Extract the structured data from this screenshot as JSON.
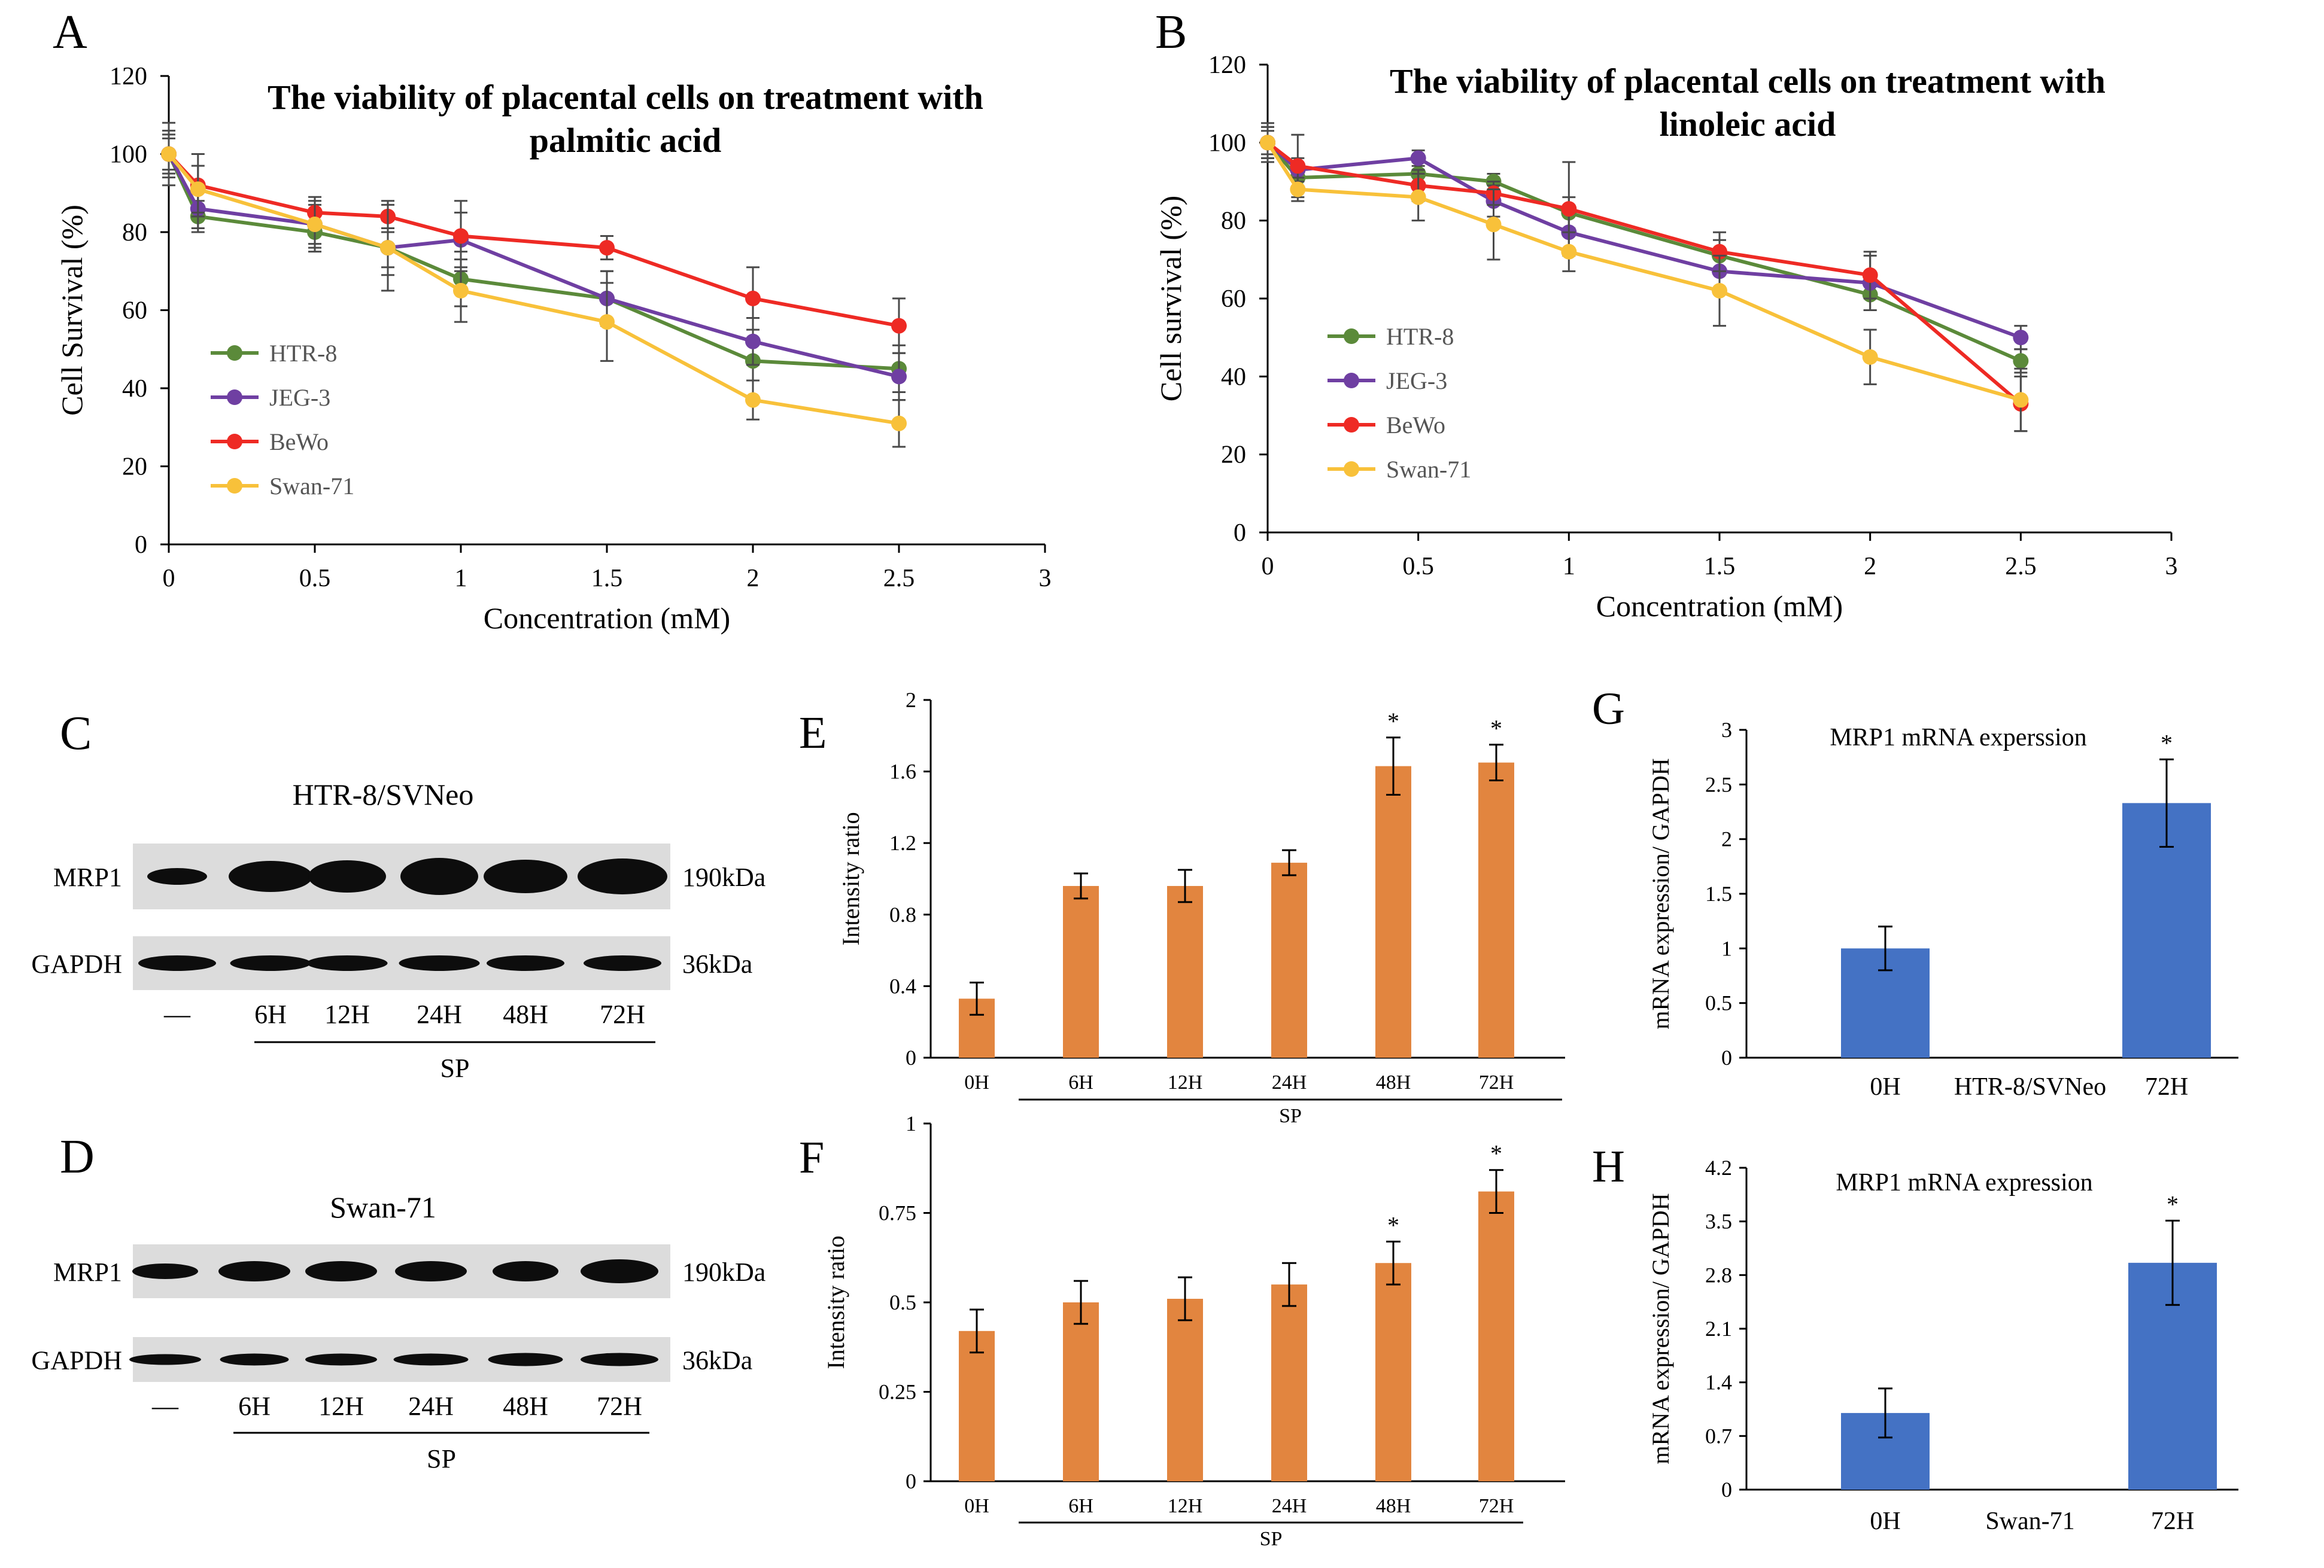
{
  "panels": {
    "A": {
      "letter": "A"
    },
    "B": {
      "letter": "B"
    },
    "C": {
      "letter": "C"
    },
    "D": {
      "letter": "D"
    },
    "E": {
      "letter": "E"
    },
    "F": {
      "letter": "F"
    },
    "G": {
      "letter": "G"
    },
    "H": {
      "letter": "H"
    }
  },
  "colors": {
    "HTR-8": "#5b8a3a",
    "JEG-3": "#6f3fa2",
    "BeWo": "#ee2a24",
    "Swan-71": "#f8c13a",
    "orange_bar": "#e2853f",
    "blue_bar": "#4472c4",
    "axis": "#000000",
    "error": "#404040"
  },
  "blots": {
    "C": {
      "title": "HTR-8/SVNeo",
      "rows": [
        {
          "label": "MRP1",
          "kda": "190kDa"
        },
        {
          "label": "GAPDH",
          "kda": "36kDa"
        }
      ],
      "lanes": [
        "—",
        "6H",
        "12H",
        "24H",
        "48H",
        "72H"
      ],
      "group_label": "SP"
    },
    "D": {
      "title": "Swan-71",
      "rows": [
        {
          "label": "MRP1",
          "kda": "190kDa"
        },
        {
          "label": "GAPDH",
          "kda": "36kDa"
        }
      ],
      "lanes": [
        "—",
        "6H",
        "12H",
        "24H",
        "48H",
        "72H"
      ],
      "group_label": "SP"
    }
  },
  "chart_data": [
    {
      "panel": "A",
      "type": "line",
      "title": "The viability of placental cells on treatment with palmitic acid",
      "title_lines": [
        "The viability of placental cells on treatment with",
        "palmitic acid"
      ],
      "xlabel": "Concentration (mM)",
      "ylabel": "Cell Survival (%)",
      "xlim": [
        0,
        3
      ],
      "ylim": [
        0,
        120
      ],
      "xticks": [
        0,
        0.5,
        1,
        1.5,
        2,
        2.5,
        3
      ],
      "xtick_labels": [
        "0",
        "0.5",
        "1",
        "1.5",
        "2",
        "2.5",
        "3"
      ],
      "yticks": [
        0,
        20,
        40,
        60,
        80,
        100,
        120
      ],
      "ytick_labels": [
        "0",
        "20",
        "40",
        "60",
        "80",
        "100",
        "120"
      ],
      "legend": "left",
      "series": [
        {
          "name": "HTR-8",
          "x": [
            0,
            0.1,
            0.5,
            0.75,
            1,
            1.5,
            2,
            2.5
          ],
          "y": [
            100,
            84,
            80,
            76,
            68,
            63,
            47,
            45
          ],
          "err": [
            8,
            4,
            5,
            7,
            7,
            7,
            5,
            6
          ]
        },
        {
          "name": "JEG-3",
          "x": [
            0,
            0.1,
            0.5,
            0.75,
            1,
            1.5,
            2,
            2.5
          ],
          "y": [
            100,
            86,
            82,
            76,
            78,
            63,
            52,
            43
          ],
          "err": [
            6,
            5,
            5,
            5,
            7,
            7,
            6,
            6
          ]
        },
        {
          "name": "BeWo",
          "x": [
            0,
            0.1,
            0.5,
            0.75,
            1,
            1.5,
            2,
            2.5
          ],
          "y": [
            100,
            92,
            85,
            84,
            79,
            76,
            63,
            56
          ],
          "err": [
            4,
            8,
            4,
            4,
            9,
            3,
            8,
            7
          ]
        },
        {
          "name": "Swan-71",
          "x": [
            0,
            0.1,
            0.5,
            0.75,
            1,
            1.5,
            2,
            2.5
          ],
          "y": [
            100,
            91,
            82,
            76,
            65,
            57,
            37,
            31
          ],
          "err": [
            5,
            6,
            6,
            11,
            8,
            10,
            5,
            6
          ]
        }
      ]
    },
    {
      "panel": "B",
      "type": "line",
      "title": "The viability of placental cells on treatment with linoleic acid",
      "title_lines": [
        "The viability of placental cells on treatment with",
        "linoleic acid"
      ],
      "xlabel": "Concentration (mM)",
      "ylabel": "Cell survival (%)",
      "xlim": [
        0,
        3
      ],
      "ylim": [
        0,
        120
      ],
      "xticks": [
        0,
        0.5,
        1,
        1.5,
        2,
        2.5,
        3
      ],
      "xtick_labels": [
        "0",
        "0.5",
        "1",
        "1.5",
        "2",
        "2.5",
        "3"
      ],
      "yticks": [
        0,
        20,
        40,
        60,
        80,
        100,
        120
      ],
      "ytick_labels": [
        "0",
        "20",
        "40",
        "60",
        "80",
        "100",
        "120"
      ],
      "legend": "left",
      "series": [
        {
          "name": "HTR-8",
          "x": [
            0,
            0.1,
            0.5,
            0.75,
            1,
            1.5,
            2,
            2.5
          ],
          "y": [
            100,
            91,
            92,
            90,
            82,
            71,
            61,
            44
          ],
          "err": [
            4,
            3,
            3,
            2,
            4,
            4,
            4,
            3
          ]
        },
        {
          "name": "JEG-3",
          "x": [
            0,
            0.1,
            0.5,
            0.75,
            1,
            1.5,
            2,
            2.5
          ],
          "y": [
            100,
            93,
            96,
            85,
            77,
            67,
            64,
            50
          ],
          "err": [
            4,
            3,
            2,
            4,
            5,
            5,
            7,
            3
          ]
        },
        {
          "name": "BeWo",
          "x": [
            0,
            0.1,
            0.5,
            0.75,
            1,
            1.5,
            2,
            2.5
          ],
          "y": [
            100,
            94,
            89,
            87,
            83,
            72,
            66,
            33
          ],
          "err": [
            3,
            8,
            4,
            3,
            12,
            5,
            6,
            7
          ]
        },
        {
          "name": "Swan-71",
          "x": [
            0,
            0.1,
            0.5,
            0.75,
            1,
            1.5,
            2,
            2.5
          ],
          "y": [
            100,
            88,
            86,
            79,
            72,
            62,
            45,
            34
          ],
          "err": [
            5,
            3,
            6,
            9,
            5,
            9,
            7,
            8
          ]
        }
      ]
    },
    {
      "panel": "E",
      "type": "bar",
      "categories": [
        "0H",
        "6H",
        "12H",
        "24H",
        "48H",
        "72H"
      ],
      "values": [
        0.33,
        0.96,
        0.96,
        1.09,
        1.63,
        1.65
      ],
      "err": [
        0.09,
        0.07,
        0.09,
        0.07,
        0.16,
        0.1
      ],
      "significant": [
        "",
        "",
        "",
        "",
        "*",
        "*"
      ],
      "ylabel": "Intensity ratio",
      "ylim": [
        0,
        2
      ],
      "yticks": [
        0,
        0.4,
        0.8,
        1.2,
        1.6,
        2
      ],
      "ytick_labels": [
        "0",
        "0.4",
        "0.8",
        "1.2",
        "1.6",
        "2"
      ],
      "group_label": "SP"
    },
    {
      "panel": "F",
      "type": "bar",
      "categories": [
        "0H",
        "6H",
        "12H",
        "24H",
        "48H",
        "72H"
      ],
      "values": [
        0.42,
        0.5,
        0.51,
        0.55,
        0.61,
        0.81
      ],
      "err": [
        0.06,
        0.06,
        0.06,
        0.06,
        0.06,
        0.06
      ],
      "significant": [
        "",
        "",
        "",
        "",
        "*",
        "*"
      ],
      "ylabel": "Intensity ratio",
      "ylim": [
        0,
        1
      ],
      "yticks": [
        0,
        0.25,
        0.5,
        0.75,
        1
      ],
      "ytick_labels": [
        "0",
        "0.25",
        "0.5",
        "0.75",
        "1"
      ],
      "group_label": "SP"
    },
    {
      "panel": "G",
      "type": "bar",
      "title": "MRP1 mRNA experssion",
      "categories": [
        "0H",
        "72H"
      ],
      "values": [
        1.0,
        2.33
      ],
      "err": [
        0.2,
        0.4
      ],
      "significant": [
        "",
        "*"
      ],
      "ylabel": "mRNA expression/ GAPDH",
      "ylim": [
        0,
        3
      ],
      "yticks": [
        0,
        0.5,
        1,
        1.5,
        2,
        2.5,
        3
      ],
      "ytick_labels": [
        "0",
        "0.5",
        "1",
        "1.5",
        "2",
        "2.5",
        "3"
      ],
      "center_label": "HTR-8/SVNeo"
    },
    {
      "panel": "H",
      "type": "bar",
      "title": "MRP1 mRNA expression",
      "categories": [
        "0H",
        "72H"
      ],
      "values": [
        1.0,
        2.96
      ],
      "err": [
        0.32,
        0.55
      ],
      "significant": [
        "",
        "*"
      ],
      "ylabel": "mRNA expression/ GAPDH",
      "ylim": [
        0,
        4.2
      ],
      "yticks": [
        0,
        0.7,
        1.4,
        2.1,
        2.8,
        3.5,
        4.2
      ],
      "ytick_labels": [
        "0",
        "0.7",
        "1.4",
        "2.1",
        "2.8",
        "3.5",
        "4.2"
      ],
      "center_label": "Swan-71"
    }
  ]
}
